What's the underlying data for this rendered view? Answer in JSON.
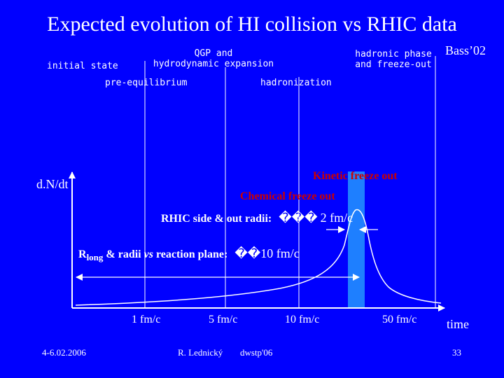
{
  "slide": {
    "title": "Expected evolution of HI collision vs RHIC data",
    "citation": "Bass’02"
  },
  "stages": {
    "initial_state": "initial state",
    "pre_equilibrium": "pre-equilibrium",
    "qgp_line1": "QGP and",
    "qgp_line2": "hydrodynamic expansion",
    "hadronization": "hadronization",
    "hadronic_line1": "hadronic phase",
    "hadronic_line2": "and freeze-out"
  },
  "plot": {
    "ylabel": "d.N/dt",
    "xlabel": "time",
    "ticks": [
      "1 fm/c",
      "5 fm/c",
      "10 fm/c",
      "50 fm/c"
    ],
    "kinetic_freeze_out": "Kinetic freeze out",
    "chemical_freeze_out": "Chemical freeze out",
    "rhic_radii_label": "RHIC side & out radii:",
    "rhic_radii_value": "2 fm/c",
    "rlong_R": "R",
    "rlong_sub": "long",
    "rlong_rest": " & radii ",
    "rlong_vs": "vs",
    "rlong_tail": " reaction plane:",
    "rlong_value": "10 fm/c",
    "unknown_glyph": "��",
    "unknown_glyph_triple": "���",
    "colors": {
      "axis": "#ffffff",
      "bar": "#1e7fff",
      "arrow": "#ffffff"
    }
  },
  "footer": {
    "date": "4-6.02.2006",
    "author": "R. Lednický",
    "event": "dwstp'06",
    "page": "33"
  }
}
